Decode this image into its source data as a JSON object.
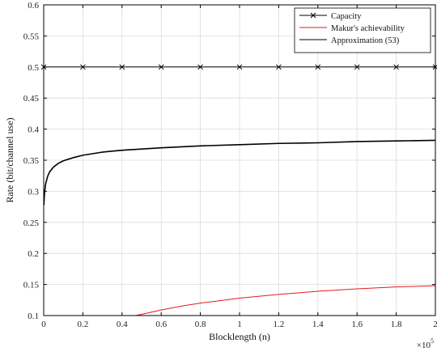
{
  "chart_data": {
    "type": "line",
    "title": "",
    "xlabel": "Blocklength (n)",
    "ylabel": "Rate (bit/channel use)",
    "x_exponent_label": "×10",
    "x_exponent": "5",
    "xlim": [
      0,
      200000
    ],
    "ylim": [
      0.1,
      0.6
    ],
    "x_scale": 100000,
    "xticks": [
      0,
      20000,
      40000,
      60000,
      80000,
      100000,
      120000,
      140000,
      160000,
      180000,
      200000
    ],
    "xtick_labels": [
      "0",
      "0.2",
      "0.4",
      "0.6",
      "0.8",
      "1",
      "1.2",
      "1.4",
      "1.6",
      "1.8",
      "2"
    ],
    "yticks": [
      0.1,
      0.15,
      0.2,
      0.25,
      0.3,
      0.35,
      0.4,
      0.45,
      0.5,
      0.55,
      0.6
    ],
    "ytick_labels": [
      "0.1",
      "0.15",
      "0.2",
      "0.25",
      "0.3",
      "0.35",
      "0.4",
      "0.45",
      "0.5",
      "0.55",
      "0.6"
    ],
    "grid": true,
    "legend_position": "top-right",
    "series": [
      {
        "name": "Capacity",
        "color": "#000000",
        "marker": "x",
        "x": [
          0,
          20000,
          40000,
          60000,
          80000,
          100000,
          120000,
          140000,
          160000,
          180000,
          200000
        ],
        "y": [
          0.5,
          0.5,
          0.5,
          0.5,
          0.5,
          0.5,
          0.5,
          0.5,
          0.5,
          0.5,
          0.5
        ]
      },
      {
        "name": "Makur's achievability",
        "color": "#e41a1c",
        "marker": "none",
        "x": [
          47000,
          50000,
          60000,
          70000,
          80000,
          90000,
          100000,
          120000,
          140000,
          160000,
          180000,
          200000
        ],
        "y": [
          0.1,
          0.102,
          0.109,
          0.115,
          0.12,
          0.124,
          0.128,
          0.134,
          0.139,
          0.143,
          0.146,
          0.148
        ]
      },
      {
        "name": "Approximation (53)",
        "color": "#000000",
        "marker": "none",
        "x": [
          100,
          300,
          500,
          1000,
          2000,
          3000,
          5000,
          7500,
          10000,
          15000,
          20000,
          30000,
          40000,
          50000,
          60000,
          80000,
          100000,
          120000,
          140000,
          160000,
          180000,
          200000
        ],
        "y": [
          0.278,
          0.292,
          0.3,
          0.312,
          0.324,
          0.331,
          0.339,
          0.345,
          0.349,
          0.354,
          0.358,
          0.363,
          0.366,
          0.368,
          0.37,
          0.373,
          0.375,
          0.377,
          0.378,
          0.38,
          0.381,
          0.382
        ]
      }
    ]
  }
}
